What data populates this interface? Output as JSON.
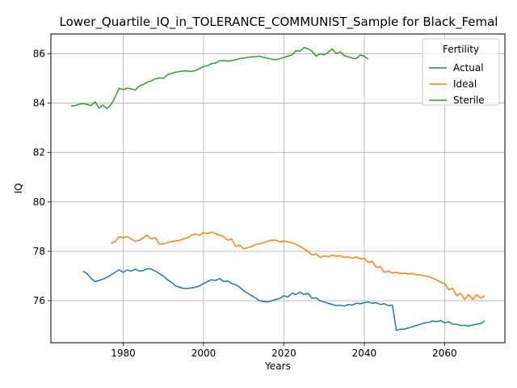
{
  "chart_data": {
    "type": "line",
    "title": "Lower_Quartile_IQ_in_TOLERANCE_COMMUNIST_Sample for Black_Femal",
    "xlabel": "Years",
    "ylabel": "IQ",
    "xlim": [
      1962,
      2075
    ],
    "ylim": [
      74.3,
      86.8
    ],
    "xticks": [
      1980,
      2000,
      2020,
      2040,
      2060
    ],
    "yticks": [
      76,
      78,
      80,
      82,
      84,
      86
    ],
    "grid": true,
    "legend": {
      "title": "Fertility",
      "placement": "top-right"
    },
    "series": [
      {
        "name": "Actual",
        "color": "#1f77b4",
        "points": [
          [
            1970,
            77.2
          ],
          [
            1971,
            77.1
          ],
          [
            1972,
            76.9
          ],
          [
            1973,
            76.78
          ],
          [
            1974,
            76.82
          ],
          [
            1975,
            76.88
          ],
          [
            1976,
            76.95
          ],
          [
            1977,
            77.05
          ],
          [
            1978,
            77.15
          ],
          [
            1979,
            77.25
          ],
          [
            1980,
            77.15
          ],
          [
            1981,
            77.25
          ],
          [
            1982,
            77.2
          ],
          [
            1983,
            77.28
          ],
          [
            1984,
            77.2
          ],
          [
            1985,
            77.22
          ],
          [
            1986,
            77.3
          ],
          [
            1987,
            77.28
          ],
          [
            1988,
            77.2
          ],
          [
            1989,
            77.1
          ],
          [
            1990,
            77.0
          ],
          [
            1991,
            76.85
          ],
          [
            1992,
            76.75
          ],
          [
            1993,
            76.6
          ],
          [
            1994,
            76.55
          ],
          [
            1995,
            76.5
          ],
          [
            1996,
            76.5
          ],
          [
            1997,
            76.52
          ],
          [
            1998,
            76.55
          ],
          [
            1999,
            76.6
          ],
          [
            2000,
            76.7
          ],
          [
            2001,
            76.78
          ],
          [
            2002,
            76.85
          ],
          [
            2003,
            76.82
          ],
          [
            2004,
            76.9
          ],
          [
            2005,
            76.78
          ],
          [
            2006,
            76.8
          ],
          [
            2007,
            76.7
          ],
          [
            2008,
            76.65
          ],
          [
            2009,
            76.55
          ],
          [
            2010,
            76.4
          ],
          [
            2011,
            76.3
          ],
          [
            2012,
            76.2
          ],
          [
            2013,
            76.1
          ],
          [
            2014,
            76.0
          ],
          [
            2015,
            75.97
          ],
          [
            2016,
            75.95
          ],
          [
            2017,
            76.0
          ],
          [
            2018,
            76.05
          ],
          [
            2019,
            76.1
          ],
          [
            2020,
            76.2
          ],
          [
            2021,
            76.15
          ],
          [
            2022,
            76.3
          ],
          [
            2023,
            76.25
          ],
          [
            2024,
            76.35
          ],
          [
            2025,
            76.25
          ],
          [
            2026,
            76.3
          ],
          [
            2027,
            76.1
          ],
          [
            2028,
            76.12
          ],
          [
            2029,
            76.0
          ],
          [
            2030,
            75.95
          ],
          [
            2031,
            75.9
          ],
          [
            2032,
            75.85
          ],
          [
            2033,
            75.8
          ],
          [
            2034,
            75.82
          ],
          [
            2035,
            75.78
          ],
          [
            2036,
            75.85
          ],
          [
            2037,
            75.82
          ],
          [
            2038,
            75.9
          ],
          [
            2039,
            75.88
          ],
          [
            2040,
            75.92
          ],
          [
            2041,
            75.95
          ],
          [
            2042,
            75.9
          ],
          [
            2043,
            75.92
          ],
          [
            2044,
            75.85
          ],
          [
            2045,
            75.88
          ],
          [
            2046,
            75.8
          ],
          [
            2047,
            75.82
          ],
          [
            2048,
            74.8
          ],
          [
            2049,
            74.85
          ],
          [
            2050,
            74.85
          ],
          [
            2051,
            74.9
          ],
          [
            2052,
            74.95
          ],
          [
            2053,
            75.0
          ],
          [
            2054,
            75.05
          ],
          [
            2055,
            75.1
          ],
          [
            2056,
            75.12
          ],
          [
            2057,
            75.18
          ],
          [
            2058,
            75.15
          ],
          [
            2059,
            75.2
          ],
          [
            2060,
            75.1
          ],
          [
            2061,
            75.15
          ],
          [
            2062,
            75.05
          ],
          [
            2063,
            75.05
          ],
          [
            2064,
            75.0
          ],
          [
            2065,
            75.0
          ],
          [
            2066,
            74.98
          ],
          [
            2067,
            75.02
          ],
          [
            2068,
            75.05
          ],
          [
            2069,
            75.08
          ],
          [
            2070,
            75.18
          ]
        ]
      },
      {
        "name": "Ideal",
        "color": "#ff7f0e",
        "points": [
          [
            1977,
            78.32
          ],
          [
            1978,
            78.4
          ],
          [
            1979,
            78.6
          ],
          [
            1980,
            78.55
          ],
          [
            1981,
            78.6
          ],
          [
            1982,
            78.5
          ],
          [
            1983,
            78.4
          ],
          [
            1984,
            78.45
          ],
          [
            1985,
            78.55
          ],
          [
            1986,
            78.65
          ],
          [
            1987,
            78.5
          ],
          [
            1988,
            78.55
          ],
          [
            1989,
            78.3
          ],
          [
            1990,
            78.3
          ],
          [
            1991,
            78.35
          ],
          [
            1992,
            78.4
          ],
          [
            1993,
            78.42
          ],
          [
            1994,
            78.45
          ],
          [
            1995,
            78.5
          ],
          [
            1996,
            78.55
          ],
          [
            1997,
            78.65
          ],
          [
            1998,
            78.7
          ],
          [
            1999,
            78.65
          ],
          [
            2000,
            78.75
          ],
          [
            2001,
            78.72
          ],
          [
            2002,
            78.78
          ],
          [
            2003,
            78.72
          ],
          [
            2004,
            78.65
          ],
          [
            2005,
            78.6
          ],
          [
            2006,
            78.45
          ],
          [
            2007,
            78.5
          ],
          [
            2008,
            78.2
          ],
          [
            2009,
            78.25
          ],
          [
            2010,
            78.1
          ],
          [
            2011,
            78.15
          ],
          [
            2012,
            78.2
          ],
          [
            2013,
            78.28
          ],
          [
            2014,
            78.3
          ],
          [
            2015,
            78.35
          ],
          [
            2016,
            78.42
          ],
          [
            2017,
            78.45
          ],
          [
            2018,
            78.45
          ],
          [
            2019,
            78.38
          ],
          [
            2020,
            78.42
          ],
          [
            2021,
            78.38
          ],
          [
            2022,
            78.35
          ],
          [
            2023,
            78.28
          ],
          [
            2024,
            78.2
          ],
          [
            2025,
            78.1
          ],
          [
            2026,
            78.0
          ],
          [
            2027,
            77.85
          ],
          [
            2028,
            77.9
          ],
          [
            2029,
            77.75
          ],
          [
            2030,
            77.82
          ],
          [
            2031,
            77.78
          ],
          [
            2032,
            77.85
          ],
          [
            2033,
            77.8
          ],
          [
            2034,
            77.82
          ],
          [
            2035,
            77.75
          ],
          [
            2036,
            77.78
          ],
          [
            2037,
            77.72
          ],
          [
            2038,
            77.78
          ],
          [
            2039,
            77.7
          ],
          [
            2040,
            77.72
          ],
          [
            2041,
            77.55
          ],
          [
            2042,
            77.6
          ],
          [
            2043,
            77.35
          ],
          [
            2044,
            77.38
          ],
          [
            2045,
            77.15
          ],
          [
            2046,
            77.2
          ],
          [
            2047,
            77.12
          ],
          [
            2048,
            77.15
          ],
          [
            2049,
            77.1
          ],
          [
            2050,
            77.12
          ],
          [
            2051,
            77.08
          ],
          [
            2052,
            77.1
          ],
          [
            2053,
            77.05
          ],
          [
            2054,
            77.05
          ],
          [
            2055,
            77.0
          ],
          [
            2056,
            76.98
          ],
          [
            2057,
            76.92
          ],
          [
            2058,
            76.85
          ],
          [
            2059,
            76.75
          ],
          [
            2060,
            76.7
          ],
          [
            2061,
            76.45
          ],
          [
            2062,
            76.5
          ],
          [
            2063,
            76.2
          ],
          [
            2064,
            76.3
          ],
          [
            2065,
            76.05
          ],
          [
            2066,
            76.25
          ],
          [
            2067,
            76.05
          ],
          [
            2068,
            76.25
          ],
          [
            2069,
            76.1
          ],
          [
            2070,
            76.2
          ]
        ]
      },
      {
        "name": "Sterile",
        "color": "#2ca02c",
        "points": [
          [
            1967,
            83.88
          ],
          [
            1968,
            83.9
          ],
          [
            1969,
            83.95
          ],
          [
            1970,
            83.98
          ],
          [
            1971,
            83.95
          ],
          [
            1972,
            83.9
          ],
          [
            1973,
            84.05
          ],
          [
            1974,
            83.8
          ],
          [
            1975,
            83.92
          ],
          [
            1976,
            83.78
          ],
          [
            1977,
            83.95
          ],
          [
            1978,
            84.25
          ],
          [
            1979,
            84.6
          ],
          [
            1980,
            84.55
          ],
          [
            1981,
            84.6
          ],
          [
            1982,
            84.58
          ],
          [
            1983,
            84.52
          ],
          [
            1984,
            84.7
          ],
          [
            1985,
            84.75
          ],
          [
            1986,
            84.85
          ],
          [
            1987,
            84.9
          ],
          [
            1988,
            84.98
          ],
          [
            1989,
            85.02
          ],
          [
            1990,
            85.0
          ],
          [
            1991,
            85.15
          ],
          [
            1992,
            85.2
          ],
          [
            1993,
            85.25
          ],
          [
            1994,
            85.28
          ],
          [
            1995,
            85.3
          ],
          [
            1996,
            85.3
          ],
          [
            1997,
            85.28
          ],
          [
            1998,
            85.32
          ],
          [
            1999,
            85.4
          ],
          [
            2000,
            85.48
          ],
          [
            2001,
            85.52
          ],
          [
            2002,
            85.6
          ],
          [
            2003,
            85.62
          ],
          [
            2004,
            85.72
          ],
          [
            2005,
            85.72
          ],
          [
            2006,
            85.7
          ],
          [
            2007,
            85.72
          ],
          [
            2008,
            85.75
          ],
          [
            2009,
            85.8
          ],
          [
            2010,
            85.82
          ],
          [
            2011,
            85.85
          ],
          [
            2012,
            85.87
          ],
          [
            2013,
            85.88
          ],
          [
            2014,
            85.9
          ],
          [
            2015,
            85.85
          ],
          [
            2016,
            85.82
          ],
          [
            2017,
            85.78
          ],
          [
            2018,
            85.75
          ],
          [
            2019,
            85.8
          ],
          [
            2020,
            85.85
          ],
          [
            2021,
            85.9
          ],
          [
            2022,
            85.95
          ],
          [
            2023,
            86.12
          ],
          [
            2024,
            86.1
          ],
          [
            2025,
            86.25
          ],
          [
            2026,
            86.2
          ],
          [
            2027,
            86.1
          ],
          [
            2028,
            85.9
          ],
          [
            2029,
            86.0
          ],
          [
            2030,
            85.95
          ],
          [
            2031,
            86.05
          ],
          [
            2032,
            86.2
          ],
          [
            2033,
            86.0
          ],
          [
            2034,
            86.08
          ],
          [
            2035,
            85.92
          ],
          [
            2036,
            85.88
          ],
          [
            2037,
            85.82
          ],
          [
            2038,
            85.8
          ],
          [
            2039,
            85.95
          ],
          [
            2040,
            85.9
          ],
          [
            2041,
            85.78
          ]
        ]
      }
    ]
  }
}
